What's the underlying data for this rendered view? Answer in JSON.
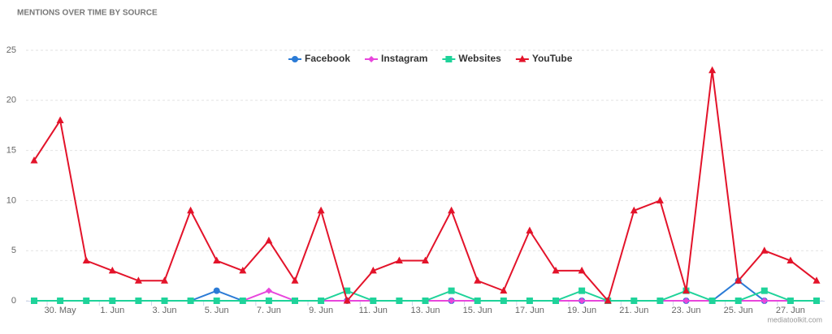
{
  "chart_data": {
    "type": "line",
    "title": "MENTIONS OVER TIME BY SOURCE",
    "credit": "mediatoolkit.com",
    "categories": [
      null,
      "30. May",
      null,
      "1. Jun",
      null,
      "3. Jun",
      null,
      "5. Jun",
      null,
      "7. Jun",
      null,
      "9. Jun",
      null,
      "11. Jun",
      null,
      "13. Jun",
      null,
      "15. Jun",
      null,
      "17. Jun",
      null,
      "19. Jun",
      null,
      "21. Jun",
      null,
      "23. Jun",
      null,
      "25. Jun",
      null,
      "27. Jun",
      null
    ],
    "ylim": [
      0,
      25
    ],
    "yticks": [
      0,
      5,
      10,
      15,
      20,
      25
    ],
    "grid": true,
    "legend": "top",
    "series": [
      {
        "name": "Facebook",
        "color": "#2b7bd6",
        "marker": "circle",
        "values": [
          0,
          0,
          0,
          0,
          0,
          0,
          0,
          1,
          0,
          0,
          0,
          0,
          0,
          0,
          0,
          0,
          0,
          0,
          0,
          0,
          0,
          0,
          0,
          0,
          0,
          0,
          0,
          2,
          0,
          0,
          0
        ]
      },
      {
        "name": "Instagram",
        "color": "#e846dc",
        "marker": "diamond",
        "values": [
          0,
          0,
          0,
          0,
          0,
          0,
          0,
          0,
          0,
          1,
          0,
          0,
          0,
          0,
          0,
          0,
          0,
          0,
          0,
          0,
          0,
          0,
          0,
          0,
          0,
          0,
          0,
          0,
          0,
          0,
          0
        ]
      },
      {
        "name": "Websites",
        "color": "#1fd39a",
        "marker": "square",
        "values": [
          0,
          0,
          0,
          0,
          0,
          0,
          0,
          0,
          0,
          0,
          0,
          0,
          1,
          0,
          0,
          0,
          1,
          0,
          0,
          0,
          0,
          1,
          0,
          0,
          0,
          1,
          0,
          0,
          1,
          0,
          0
        ]
      },
      {
        "name": "YouTube",
        "color": "#e3132a",
        "marker": "triangle",
        "values": [
          14,
          18,
          4,
          3,
          2,
          2,
          9,
          4,
          3,
          6,
          2,
          9,
          0,
          3,
          4,
          4,
          9,
          2,
          1,
          7,
          3,
          3,
          0,
          9,
          10,
          1,
          23,
          2,
          5,
          4,
          2
        ]
      }
    ]
  }
}
